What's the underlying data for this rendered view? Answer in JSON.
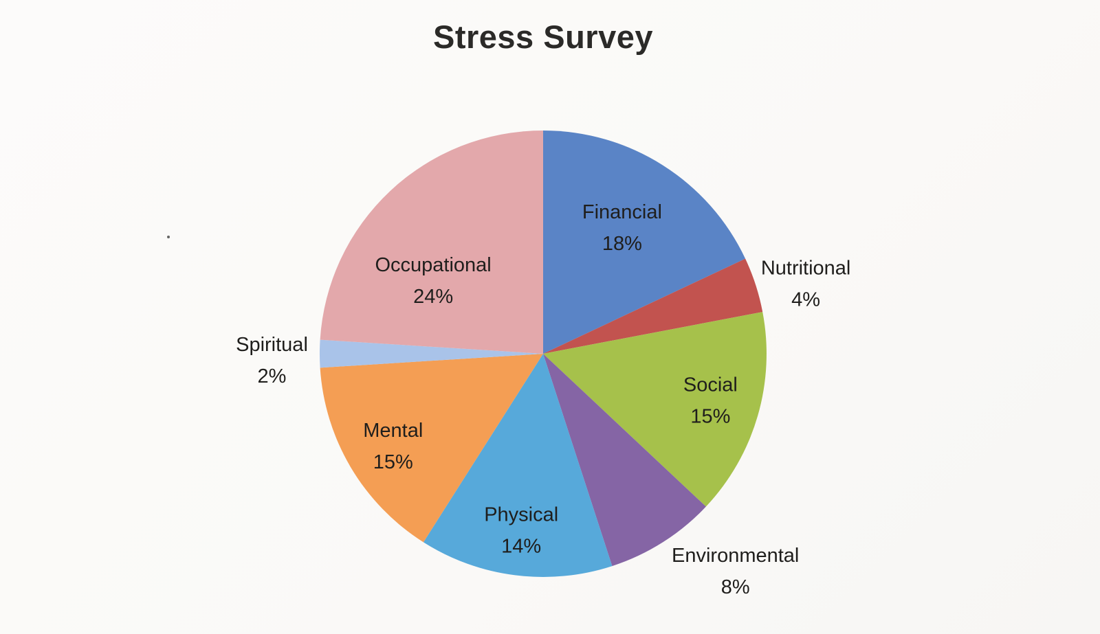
{
  "title": "Stress Survey",
  "chart_data": {
    "type": "pie",
    "title": "Stress Survey",
    "start_angle_deg": 0,
    "direction": "clockwise",
    "value_suffix": "%",
    "total": 100,
    "legend": "none",
    "labels_on_chart": true,
    "slices": [
      {
        "label": "Financial",
        "value": 18,
        "color": "#5a84c6",
        "label_placement": "inside"
      },
      {
        "label": "Nutritional",
        "value": 4,
        "color": "#c2534f",
        "label_placement": "outside"
      },
      {
        "label": "Social",
        "value": 15,
        "color": "#a6c14b",
        "label_placement": "inside"
      },
      {
        "label": "Environmental",
        "value": 8,
        "color": "#8565a5",
        "label_placement": "outside"
      },
      {
        "label": "Physical",
        "value": 14,
        "color": "#57a9da",
        "label_placement": "inside"
      },
      {
        "label": "Mental",
        "value": 15,
        "color": "#f49e54",
        "label_placement": "inside"
      },
      {
        "label": "Spiritual",
        "value": 2,
        "color": "#a9c3e9",
        "label_placement": "outside"
      },
      {
        "label": "Occupational",
        "value": 24,
        "color": "#e3a8ab",
        "label_placement": "inside"
      }
    ]
  }
}
